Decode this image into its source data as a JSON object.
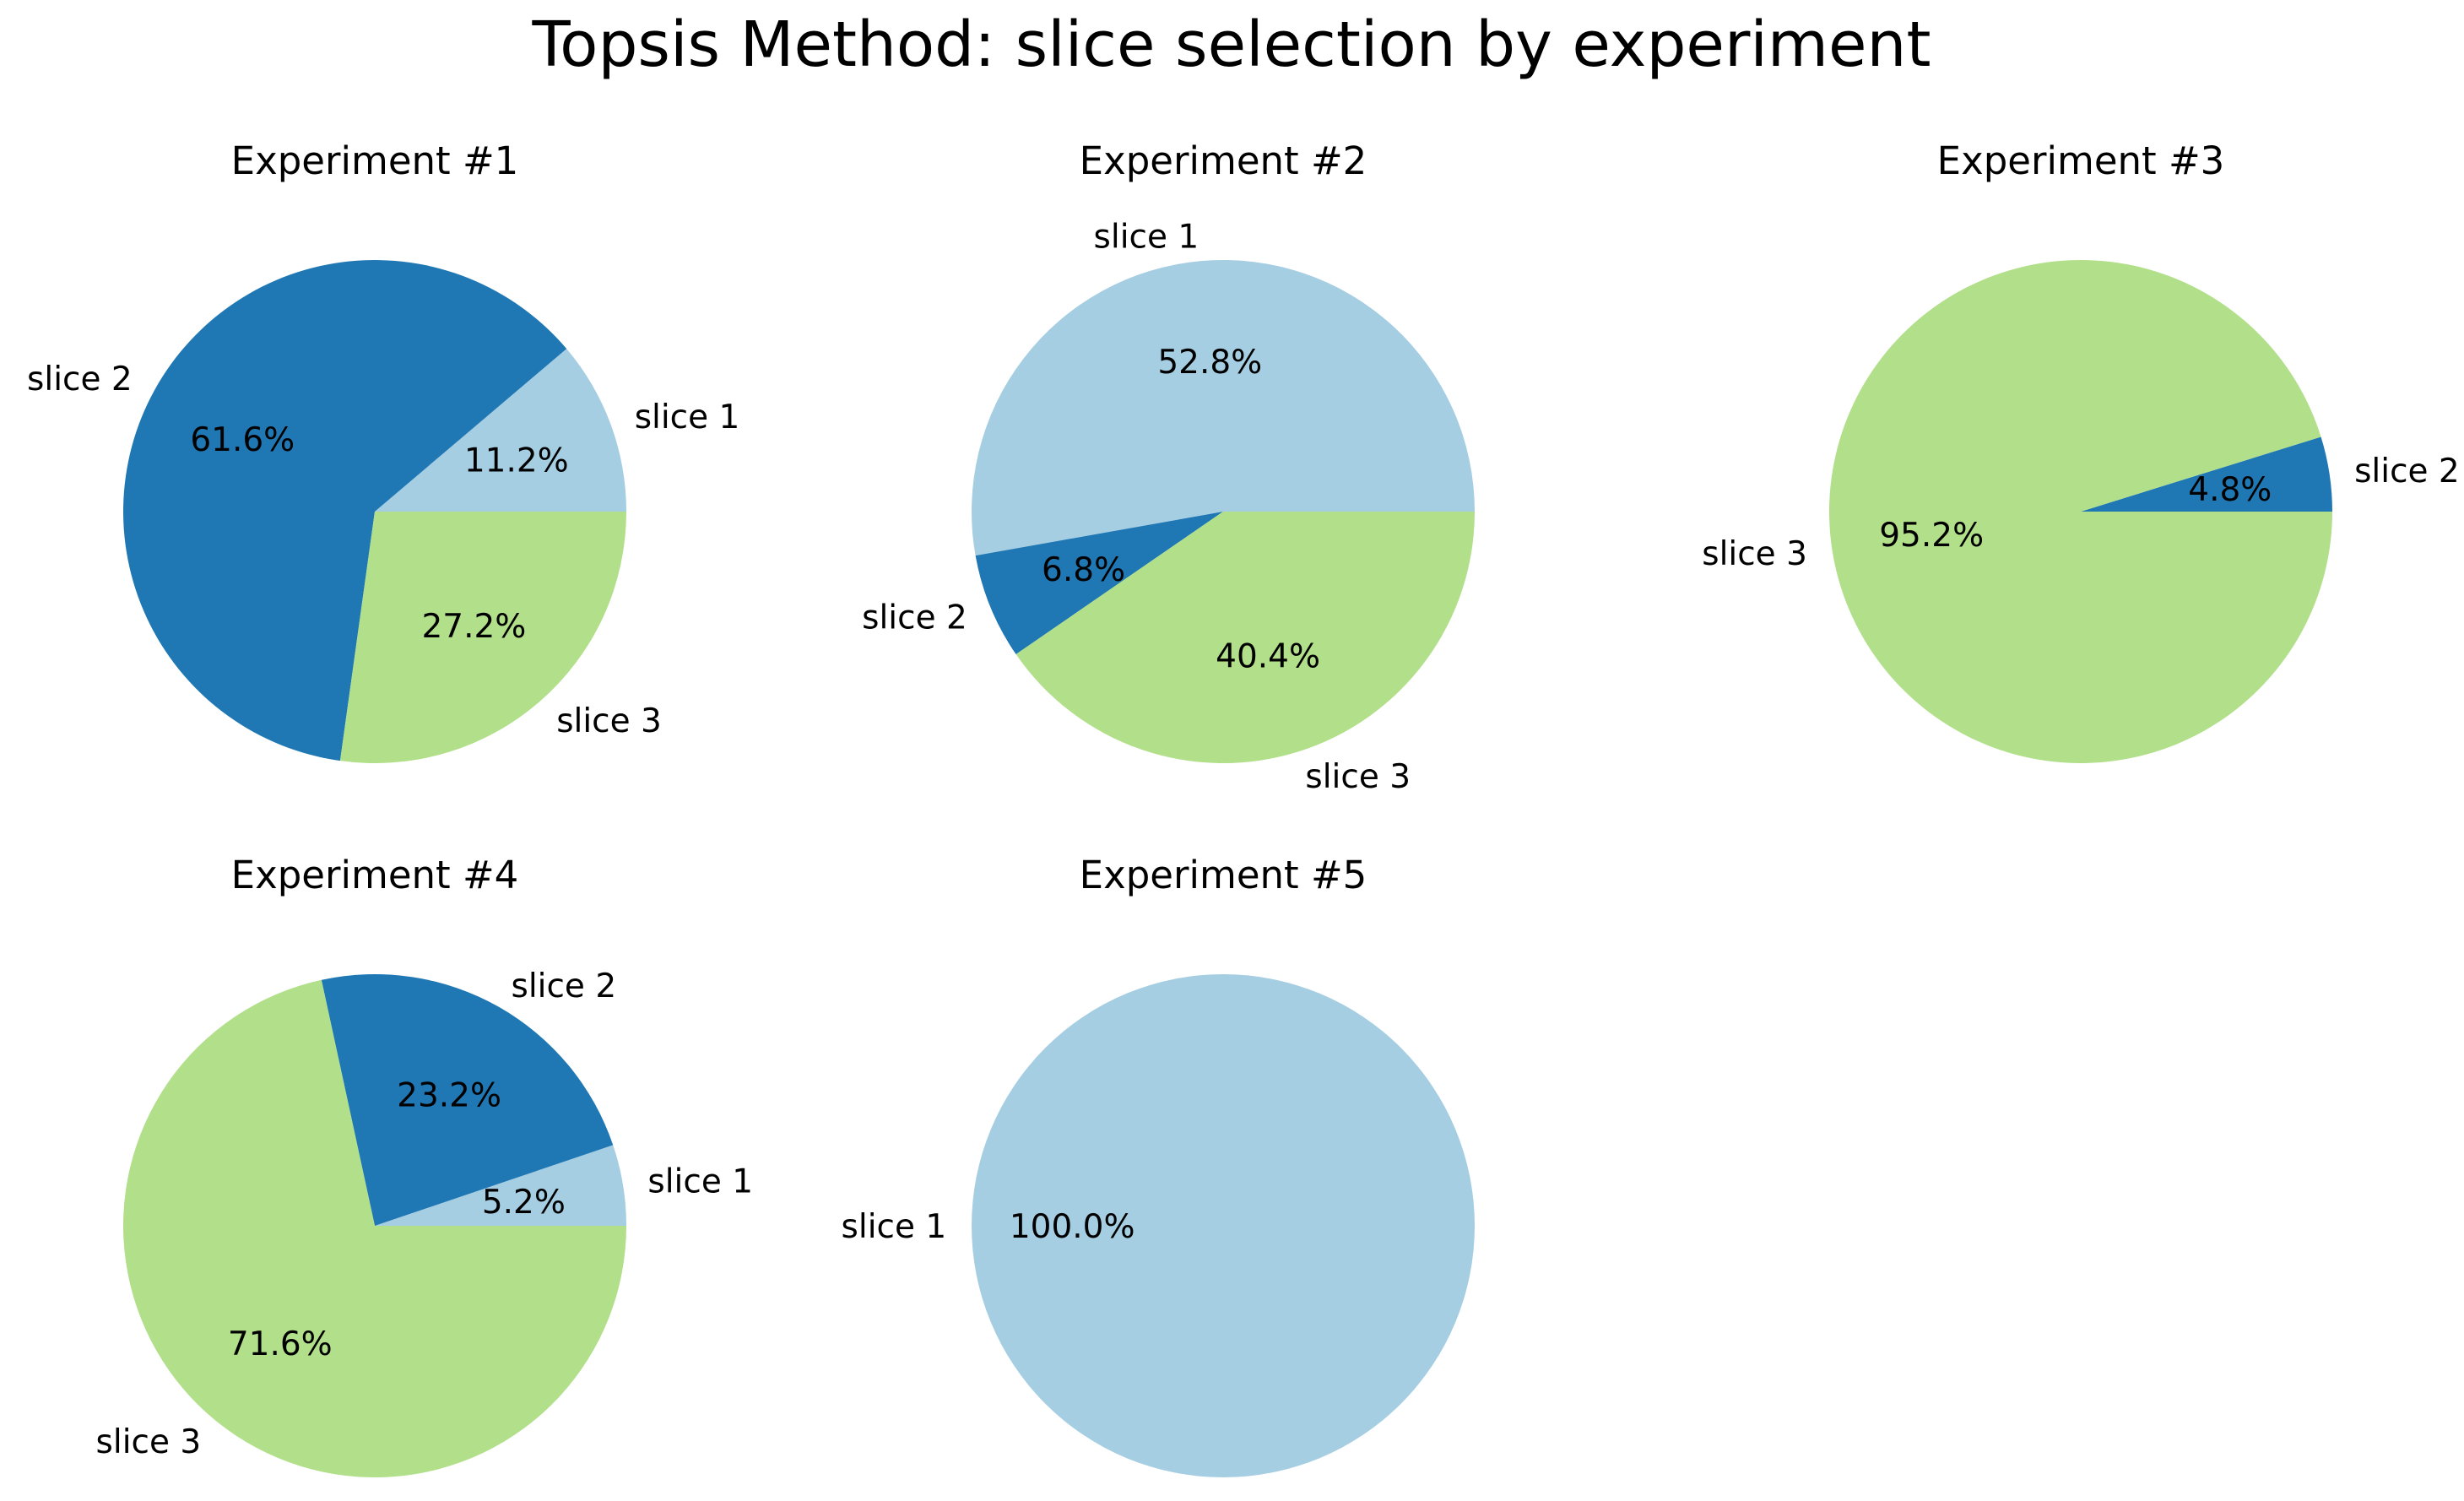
{
  "chart_data": {
    "type": "pie",
    "title": "Topsis Method: slice selection by experiment",
    "colors": {
      "slice 1": "#a6cee3",
      "slice 2": "#1f78b4",
      "slice 3": "#b2df8a"
    },
    "charts": [
      {
        "title": "Experiment #1",
        "slices": [
          {
            "label": "slice 1",
            "value": 11.2,
            "pct_text": "11.2%"
          },
          {
            "label": "slice 2",
            "value": 61.6,
            "pct_text": "61.6%"
          },
          {
            "label": "slice 3",
            "value": 27.2,
            "pct_text": "27.2%"
          }
        ]
      },
      {
        "title": "Experiment #2",
        "slices": [
          {
            "label": "slice 1",
            "value": 52.8,
            "pct_text": "52.8%"
          },
          {
            "label": "slice 2",
            "value": 6.8,
            "pct_text": "6.8%"
          },
          {
            "label": "slice 3",
            "value": 40.4,
            "pct_text": "40.4%"
          }
        ]
      },
      {
        "title": "Experiment #3",
        "slices": [
          {
            "label": "slice 2",
            "value": 4.8,
            "pct_text": "4.8%"
          },
          {
            "label": "slice 3",
            "value": 95.2,
            "pct_text": "95.2%"
          }
        ]
      },
      {
        "title": "Experiment #4",
        "slices": [
          {
            "label": "slice 1",
            "value": 5.2,
            "pct_text": "5.2%"
          },
          {
            "label": "slice 2",
            "value": 23.2,
            "pct_text": "23.2%"
          },
          {
            "label": "slice 3",
            "value": 71.6,
            "pct_text": "71.6%"
          }
        ]
      },
      {
        "title": "Experiment #5",
        "slices": [
          {
            "label": "slice 1",
            "value": 100.0,
            "pct_text": "100.0%"
          }
        ]
      }
    ]
  }
}
